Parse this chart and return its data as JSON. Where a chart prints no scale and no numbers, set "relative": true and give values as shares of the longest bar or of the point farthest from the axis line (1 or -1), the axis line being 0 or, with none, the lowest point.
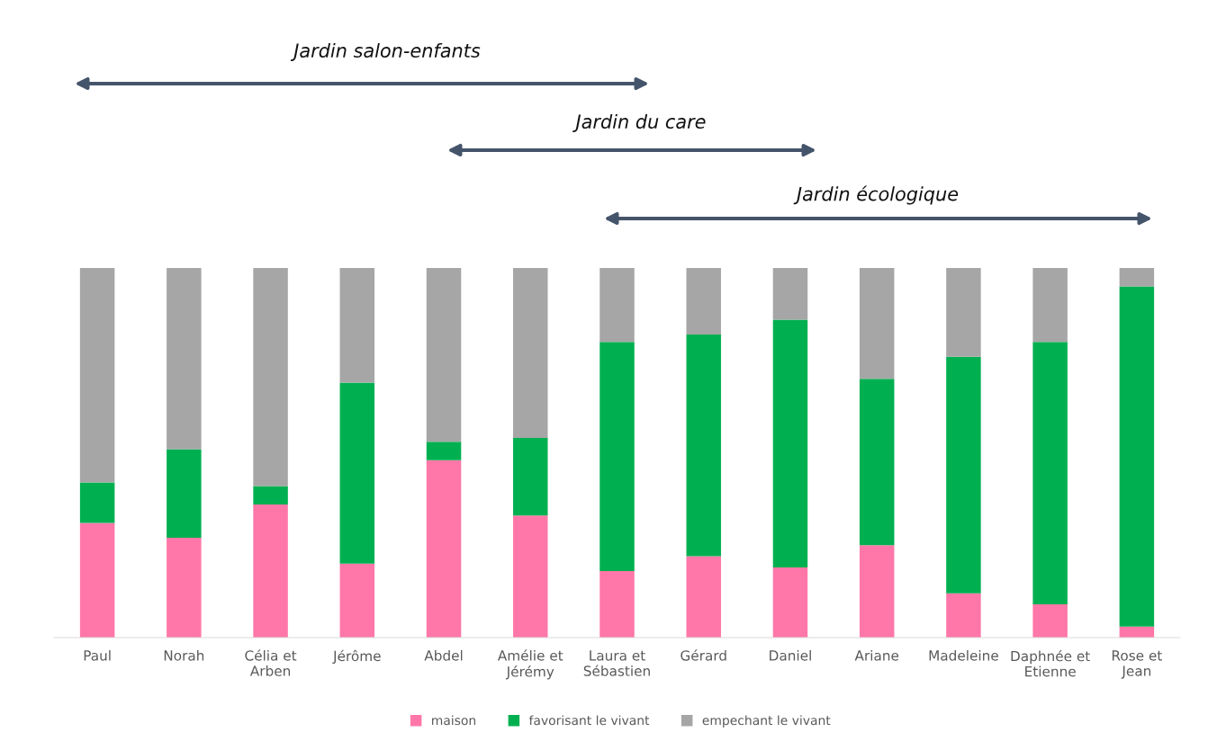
{
  "chart_data": {
    "type": "bar",
    "stacked": true,
    "relative": true,
    "categories": [
      "Paul",
      "Norah",
      "Célia et Arben",
      "Jérôme",
      "Abdel",
      "Amélie et Jérémy",
      "Laura et Sébastien",
      "Gérard",
      "Daniel",
      "Ariane",
      "Madeleine",
      "Daphnée et Etienne",
      "Rose et Jean"
    ],
    "series": [
      {
        "name": "maison",
        "color": "#ff77a8",
        "values": [
          0.31,
          0.27,
          0.36,
          0.2,
          0.48,
          0.33,
          0.18,
          0.22,
          0.19,
          0.25,
          0.12,
          0.09,
          0.03
        ]
      },
      {
        "name": "favorisant le vivant",
        "color": "#00b050",
        "values": [
          0.11,
          0.24,
          0.05,
          0.49,
          0.05,
          0.21,
          0.62,
          0.6,
          0.67,
          0.45,
          0.64,
          0.71,
          0.92
        ]
      },
      {
        "name": "empechant le vivant",
        "color": "#a6a6a6",
        "values": [
          0.58,
          0.49,
          0.59,
          0.31,
          0.47,
          0.46,
          0.2,
          0.18,
          0.14,
          0.3,
          0.24,
          0.2,
          0.05
        ]
      }
    ],
    "annotations": [
      "Jardin salon-enfants",
      "Jardin du care",
      "Jardin écologique"
    ],
    "legend": "bottom",
    "grid": false
  }
}
